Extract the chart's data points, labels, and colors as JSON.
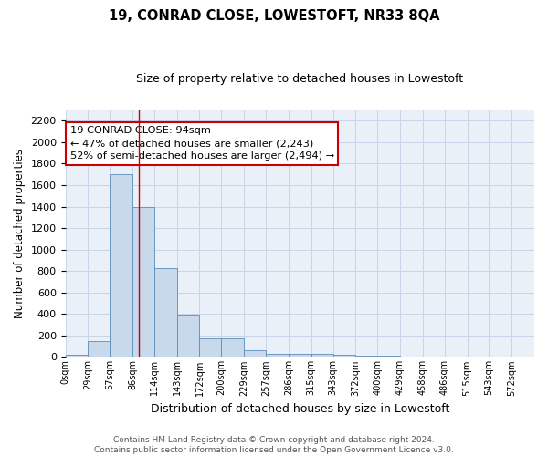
{
  "title": "19, CONRAD CLOSE, LOWESTOFT, NR33 8QA",
  "subtitle": "Size of property relative to detached houses in Lowestoft",
  "xlabel": "Distribution of detached houses by size in Lowestoft",
  "ylabel": "Number of detached properties",
  "bin_labels": [
    "0sqm",
    "29sqm",
    "57sqm",
    "86sqm",
    "114sqm",
    "143sqm",
    "172sqm",
    "200sqm",
    "229sqm",
    "257sqm",
    "286sqm",
    "315sqm",
    "343sqm",
    "372sqm",
    "400sqm",
    "429sqm",
    "458sqm",
    "486sqm",
    "515sqm",
    "543sqm",
    "572sqm"
  ],
  "bin_edges": [
    0,
    29,
    57,
    86,
    114,
    143,
    172,
    200,
    229,
    257,
    286,
    315,
    343,
    372,
    400,
    429,
    458,
    486,
    515,
    543,
    572,
    601
  ],
  "bar_heights": [
    20,
    150,
    1700,
    1400,
    830,
    390,
    170,
    170,
    65,
    30,
    30,
    25,
    20,
    15,
    10,
    5,
    5,
    3,
    3,
    2,
    0
  ],
  "bar_color": "#c8d9ec",
  "bar_edge_color": "#5b8db8",
  "grid_color": "#c8d4e8",
  "background_color": "#eaf0f8",
  "red_line_x": 94,
  "annotation_line1": "19 CONRAD CLOSE: 94sqm",
  "annotation_line2": "← 47% of detached houses are smaller (2,243)",
  "annotation_line3": "52% of semi-detached houses are larger (2,494) →",
  "annotation_box_color": "#ffffff",
  "annotation_box_edge_color": "#cc0000",
  "ylim": [
    0,
    2300
  ],
  "yticks": [
    0,
    200,
    400,
    600,
    800,
    1000,
    1200,
    1400,
    1600,
    1800,
    2000,
    2200
  ],
  "footer_line1": "Contains HM Land Registry data © Crown copyright and database right 2024.",
  "footer_line2": "Contains public sector information licensed under the Open Government Licence v3.0."
}
